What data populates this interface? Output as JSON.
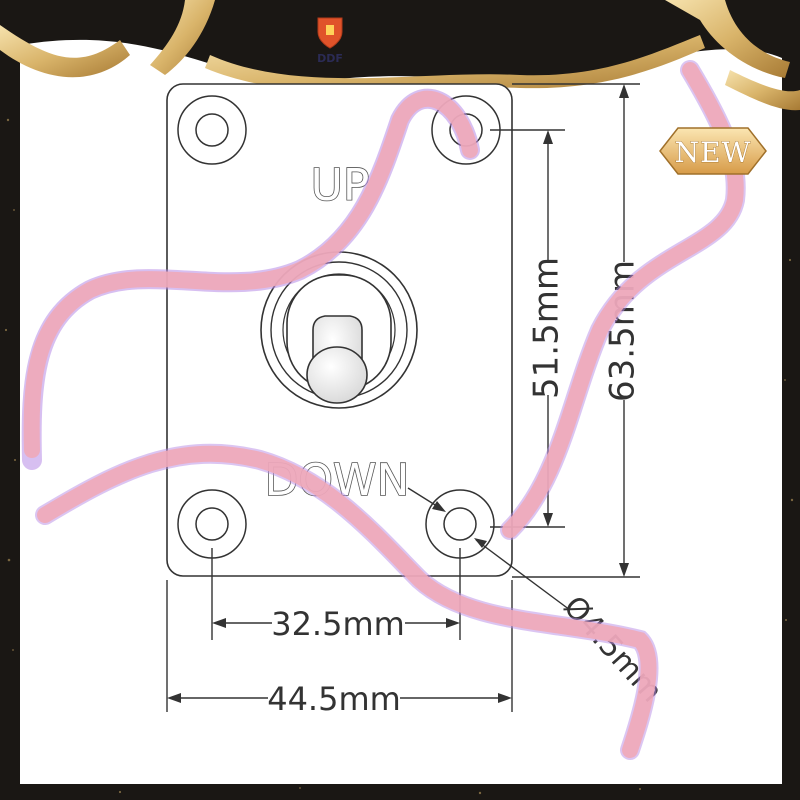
{
  "brand": {
    "logo_icon": "shield-crest-icon",
    "name": "DDF"
  },
  "badge": {
    "label": "NEW"
  },
  "panel": {
    "label_up": "UP",
    "label_down": "DOWN"
  },
  "dimensions": {
    "hole_spacing_vertical": "51.5mm",
    "plate_height": "63.5mm",
    "hole_spacing_horizontal": "32.5mm",
    "plate_width": "44.5mm",
    "hole_diameter": "Ø4.5mm"
  },
  "colors": {
    "frame": "#1a1714",
    "gold": "#d9b46a",
    "ribbon": "#f0a8b8",
    "ribbon_shadow": "#b78be6",
    "line": "#333333"
  }
}
